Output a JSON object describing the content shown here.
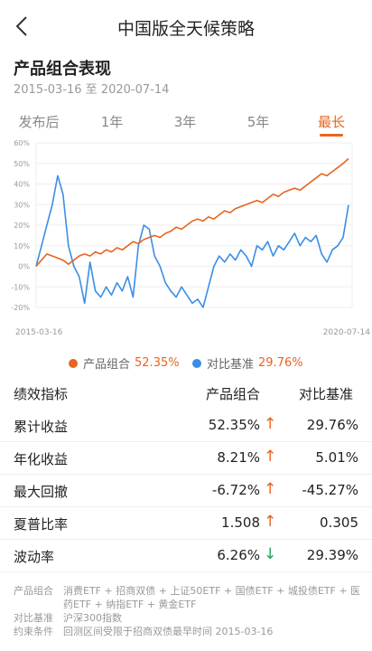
{
  "nav": {
    "title": "中国版全天候策略",
    "back_icon": "chevron-left-icon"
  },
  "section": {
    "title": "产品组合表现",
    "date_range": "2015-03-16 至 2020-07-14"
  },
  "tabs": [
    {
      "label": "发布后",
      "active": false
    },
    {
      "label": "1年",
      "active": false
    },
    {
      "label": "3年",
      "active": false
    },
    {
      "label": "5年",
      "active": false
    },
    {
      "label": "最长",
      "active": true
    }
  ],
  "colors": {
    "accent": "#e8641f",
    "portfolio": "#e8641f",
    "benchmark": "#3a8ee6",
    "up": "#e8641f",
    "down": "#1aa45b"
  },
  "chart_data": {
    "type": "line",
    "x_start_label": "2015-03-16",
    "x_end_label": "2020-07-14",
    "y_ticks": [
      "60%",
      "50%",
      "40%",
      "30%",
      "20%",
      "10%",
      "0%",
      "-10%",
      "-20%"
    ],
    "ylim": [
      -20,
      60
    ],
    "grid": true,
    "series": [
      {
        "name": "产品组合",
        "values": [
          0,
          3,
          6,
          5,
          4,
          3,
          1,
          3,
          5,
          6,
          5,
          7,
          6,
          8,
          7,
          9,
          8,
          10,
          12,
          11,
          13,
          14,
          15,
          14,
          16,
          17,
          19,
          18,
          20,
          22,
          23,
          22,
          24,
          23,
          25,
          27,
          26,
          28,
          29,
          30,
          31,
          32,
          31,
          33,
          35,
          34,
          36,
          37,
          38,
          37,
          39,
          41,
          43,
          45,
          44,
          46,
          48,
          50,
          52.35
        ]
      },
      {
        "name": "对比基准",
        "values": [
          0,
          10,
          20,
          30,
          44,
          35,
          10,
          0,
          -5,
          -18,
          2,
          -12,
          -15,
          -10,
          -14,
          -8,
          -12,
          -5,
          -15,
          10,
          20,
          18,
          5,
          0,
          -8,
          -12,
          -15,
          -10,
          -14,
          -18,
          -16,
          -20,
          -10,
          0,
          5,
          2,
          6,
          3,
          8,
          5,
          0,
          10,
          8,
          12,
          5,
          10,
          8,
          12,
          16,
          10,
          14,
          12,
          15,
          6,
          2,
          8,
          10,
          14,
          29.76
        ]
      }
    ]
  },
  "legend": [
    {
      "name": "产品组合",
      "value": "52.35%",
      "color": "#e8641f"
    },
    {
      "name": "对比基准",
      "value": "29.76%",
      "color": "#3a8ee6"
    }
  ],
  "performance": {
    "headers": [
      "绩效指标",
      "产品组合",
      "对比基准"
    ],
    "rows": [
      {
        "label": "累计收益",
        "portfolio": "52.35%",
        "arrow": "↑",
        "dir": "up",
        "benchmark": "29.76%"
      },
      {
        "label": "年化收益",
        "portfolio": "8.21%",
        "arrow": "↑",
        "dir": "up",
        "benchmark": "5.01%"
      },
      {
        "label": "最大回撤",
        "portfolio": "-6.72%",
        "arrow": "↑",
        "dir": "up",
        "benchmark": "-45.27%"
      },
      {
        "label": "夏普比率",
        "portfolio": "1.508",
        "arrow": "↑",
        "dir": "up",
        "benchmark": "0.305"
      },
      {
        "label": "波动率",
        "portfolio": "6.26%",
        "arrow": "↓",
        "dir": "down",
        "benchmark": "29.39%"
      }
    ]
  },
  "footnotes": [
    {
      "key": "产品组合",
      "value": "消费ETF + 招商双债 + 上证50ETF + 国债ETF + 城投债ETF + 医药ETF + 纳指ETF + 黄金ETF"
    },
    {
      "key": "对比基准",
      "value": "沪深300指数"
    },
    {
      "key": "约束条件",
      "value": "回测区间受限于招商双债最早时间 2015-03-16"
    }
  ]
}
